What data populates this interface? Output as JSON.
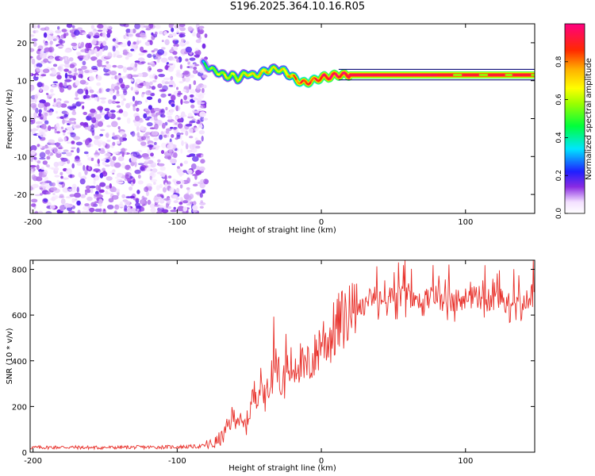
{
  "title": "S196.2025.364.10.16.R05",
  "chart_data": [
    {
      "type": "heatmap",
      "title": "S196.2025.364.10.16.R05",
      "xlabel": "Height of straight line (km)",
      "ylabel": "Frequency (Hz)",
      "xlim": [
        -202,
        148
      ],
      "ylim": [
        -25,
        25
      ],
      "xticks": [
        "-200",
        "-100",
        "0",
        "100"
      ],
      "yticks": [
        "-20",
        "-10",
        "0",
        "10",
        "20"
      ],
      "colorbar": {
        "label": "Normalized spectral amplitude",
        "range": [
          0,
          1
        ],
        "ticks": [
          "0.0",
          "0.2",
          "0.4",
          "0.6",
          "0.8"
        ]
      },
      "noise_region": {
        "x_from": -202,
        "x_to": -80
      },
      "ridge": {
        "x": [
          -82,
          -78,
          -74,
          -70,
          -66,
          -62,
          -58,
          -54,
          -50,
          -46,
          -42,
          -38,
          -34,
          -30,
          -26,
          -22,
          -18,
          -14,
          -10,
          -6,
          -2,
          2,
          6,
          10,
          14,
          20,
          30,
          60,
          100,
          148
        ],
        "frequency": [
          14.5,
          13.5,
          12.5,
          12.0,
          11.0,
          11.5,
          10.5,
          11.5,
          12.0,
          11.0,
          12.0,
          12.5,
          13.0,
          13.0,
          12.5,
          11.5,
          10.5,
          9.5,
          9.5,
          10.0,
          10.5,
          11.0,
          11.0,
          11.5,
          11.5,
          11.5,
          11.5,
          11.5,
          11.5,
          11.5
        ],
        "amplitude": [
          0.35,
          0.45,
          0.55,
          0.55,
          0.6,
          0.55,
          0.6,
          0.6,
          0.65,
          0.6,
          0.65,
          0.7,
          0.6,
          0.6,
          0.65,
          0.7,
          0.75,
          0.8,
          0.85,
          0.8,
          0.85,
          0.9,
          0.9,
          0.9,
          0.9,
          0.95,
          0.95,
          0.95,
          0.95,
          0.95
        ]
      }
    },
    {
      "type": "line",
      "xlabel": "Height of straight line (km)",
      "ylabel": "SNR (10 * v/v)",
      "xlim": [
        -202,
        148
      ],
      "ylim": [
        0,
        840
      ],
      "xticks": [
        "-200",
        "-100",
        "0",
        "100"
      ],
      "yticks": [
        "0",
        "200",
        "400",
        "600",
        "800"
      ],
      "series": [
        {
          "name": "SNR",
          "color": "#e8302a",
          "x": [
            -202,
            -180,
            -160,
            -140,
            -120,
            -100,
            -85,
            -75,
            -68,
            -62,
            -58,
            -55,
            -52,
            -48,
            -45,
            -42,
            -38,
            -35,
            -32,
            -30,
            -27,
            -24,
            -20,
            -16,
            -12,
            -8,
            -4,
            0,
            4,
            8,
            12,
            16,
            20,
            24,
            28,
            32,
            36,
            40,
            45,
            50,
            60,
            70,
            80,
            90,
            100,
            110,
            120,
            130,
            140,
            148
          ],
          "y": [
            20,
            22,
            20,
            21,
            22,
            23,
            25,
            35,
            70,
            150,
            160,
            110,
            120,
            230,
            270,
            290,
            240,
            330,
            360,
            350,
            290,
            360,
            370,
            410,
            350,
            390,
            420,
            500,
            490,
            520,
            560,
            590,
            590,
            620,
            650,
            650,
            690,
            660,
            680,
            670,
            690,
            670,
            680,
            660,
            670,
            680,
            660,
            660,
            670,
            690
          ]
        }
      ]
    }
  ]
}
